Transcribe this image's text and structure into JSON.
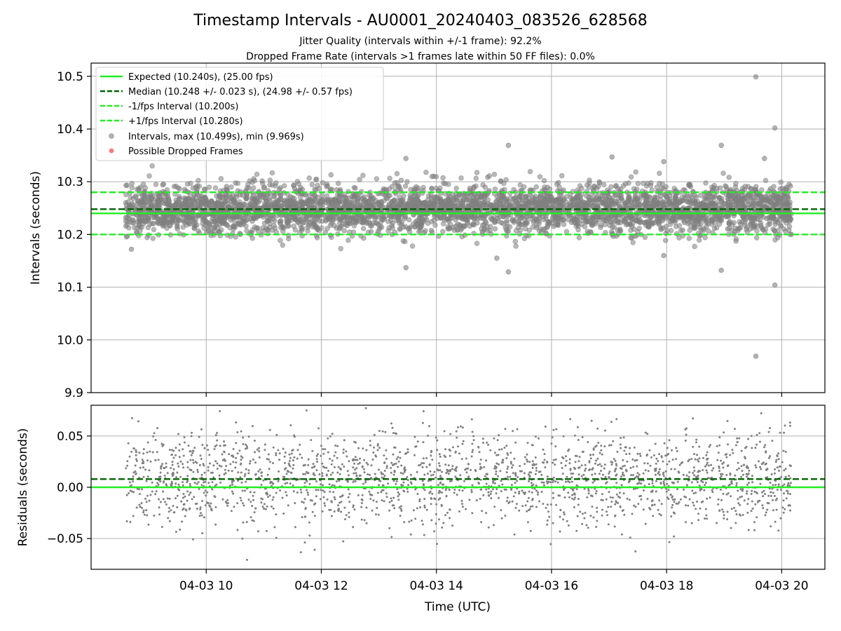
{
  "chart_data": [
    {
      "type": "scatter",
      "panel": "intervals",
      "title": "Timestamp Intervals - AU0001_20240403_083526_628568",
      "subtitle_lines": [
        "Jitter Quality (intervals within +/-1 frame): 92.2%",
        "Dropped Frame Rate (intervals >1 frames late within 50 FF files): 0.0%"
      ],
      "xlabel": "",
      "ylabel": "Intervals (seconds)",
      "x_range_hours": [
        8.0,
        20.75
      ],
      "ylim": [
        9.9,
        10.525
      ],
      "y_ticks": [
        "9.9",
        "10.0",
        "10.1",
        "10.2",
        "10.3",
        "10.4",
        "10.5"
      ],
      "y_tick_values": [
        9.9,
        10.0,
        10.1,
        10.2,
        10.3,
        10.4,
        10.5
      ],
      "grid": true,
      "legend_position": "top-left",
      "reference_lines": [
        {
          "name": "Expected (10.240s), (25.00 fps)",
          "y": 10.24,
          "color": "#22ee22",
          "style": "solid"
        },
        {
          "name": "Median (10.248 +/- 0.023 s), (24.98 +/- 0.57 fps)",
          "y": 10.248,
          "color": "#006400",
          "style": "dashed"
        },
        {
          "name": "-1/fps Interval (10.200s)",
          "y": 10.2,
          "color": "#22ee22",
          "style": "dashed"
        },
        {
          "name": "+1/fps Interval (10.280s)",
          "y": 10.28,
          "color": "#22ee22",
          "style": "dashed"
        }
      ],
      "series": [
        {
          "name": "Intervals, max (10.499s), min (9.969s)",
          "color": "#808080",
          "distribution": {
            "center": 10.248,
            "sd": 0.023,
            "x_start_hours": 8.6,
            "x_end_hours": 20.17,
            "count": 4000
          }
        },
        {
          "name": "Possible Dropped Frames",
          "color": "#ff5555",
          "points": []
        }
      ],
      "notable_points": [
        {
          "x_hours": 19.55,
          "y": 10.499
        },
        {
          "x_hours": 19.88,
          "y": 10.402
        },
        {
          "x_hours": 19.55,
          "y": 9.969
        },
        {
          "x_hours": 19.88,
          "y": 10.104
        },
        {
          "x_hours": 15.25,
          "y": 10.369
        },
        {
          "x_hours": 18.95,
          "y": 10.369
        },
        {
          "x_hours": 13.47,
          "y": 10.344
        },
        {
          "x_hours": 17.05,
          "y": 10.347
        },
        {
          "x_hours": 17.95,
          "y": 10.338
        },
        {
          "x_hours": 19.7,
          "y": 10.344
        },
        {
          "x_hours": 13.47,
          "y": 10.137
        },
        {
          "x_hours": 15.25,
          "y": 10.129
        },
        {
          "x_hours": 18.95,
          "y": 10.132
        },
        {
          "x_hours": 15.05,
          "y": 10.155
        },
        {
          "x_hours": 17.95,
          "y": 10.16
        },
        {
          "x_hours": 8.7,
          "y": 10.172
        }
      ]
    },
    {
      "type": "scatter",
      "panel": "residuals",
      "xlabel": "Time (UTC)",
      "ylabel": "Residuals (seconds)",
      "x_range_hours": [
        8.0,
        20.75
      ],
      "ylim": [
        -0.08,
        0.08
      ],
      "y_ticks": [
        "−0.05",
        "0.00",
        "0.05"
      ],
      "y_tick_values": [
        -0.05,
        0.0,
        0.05
      ],
      "x_ticks": [
        "04-03 10",
        "04-03 12",
        "04-03 14",
        "04-03 16",
        "04-03 18",
        "04-03 20"
      ],
      "x_tick_hours": [
        10,
        12,
        14,
        16,
        18,
        20
      ],
      "grid": true,
      "reference_lines": [
        {
          "y": 0.0,
          "color": "#22ee22",
          "style": "solid"
        },
        {
          "y": 0.008,
          "color": "#006400",
          "style": "dashed"
        }
      ],
      "series": [
        {
          "color": "#808080",
          "distribution": {
            "center": 0.008,
            "sd": 0.023,
            "x_start_hours": 8.6,
            "x_end_hours": 20.17,
            "count": 2200
          }
        }
      ]
    }
  ]
}
